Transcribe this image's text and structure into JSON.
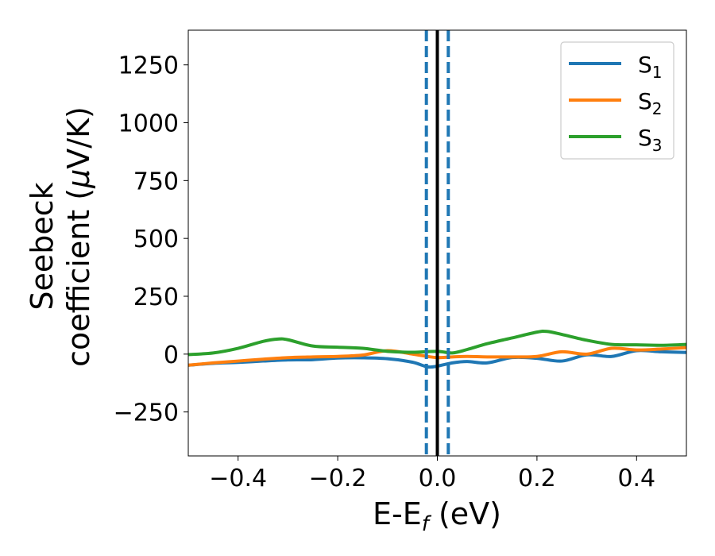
{
  "chart_data": {
    "type": "line",
    "xlabel": "E-E",
    "xlabel_sub": "f",
    "xlabel_unit": " (eV)",
    "ylabel_line1": "Seebeck",
    "ylabel_line2": "coefficient  (",
    "ylabel_mu": "μ",
    "ylabel_unit": "V/K)",
    "xlim": [
      -0.5,
      0.5
    ],
    "ylim": [
      -440,
      1400
    ],
    "xticks": [
      -0.4,
      -0.2,
      0.0,
      0.2,
      0.4
    ],
    "xtick_labels": [
      "−0.4",
      "−0.2",
      "0.0",
      "0.2",
      "0.4"
    ],
    "yticks": [
      -250,
      0,
      250,
      500,
      750,
      1000,
      1250
    ],
    "ytick_labels": [
      "−250",
      "0",
      "250",
      "500",
      "750",
      "1000",
      "1250"
    ],
    "grid": false,
    "legend_position": "top-right",
    "vlines": [
      {
        "x": 0.0,
        "color": "#000000",
        "style": "solid"
      },
      {
        "x": -0.022,
        "color": "#1f77b4",
        "style": "dashed"
      },
      {
        "x": 0.022,
        "color": "#1f77b4",
        "style": "dashed"
      }
    ],
    "series": [
      {
        "name": "S",
        "sub": "1",
        "color": "#1f77b4",
        "x": [
          -0.5,
          -0.45,
          -0.4,
          -0.35,
          -0.3,
          -0.25,
          -0.2,
          -0.15,
          -0.1,
          -0.05,
          -0.02,
          0.0,
          0.03,
          0.06,
          0.1,
          0.15,
          0.2,
          0.25,
          0.3,
          0.35,
          0.4,
          0.45,
          0.5
        ],
        "values": [
          -48,
          -40,
          -36,
          -30,
          -25,
          -24,
          -17,
          -16,
          -20,
          -35,
          -55,
          -52,
          -38,
          -32,
          -38,
          -15,
          -18,
          -30,
          -3,
          -10,
          15,
          10,
          7
        ]
      },
      {
        "name": "S",
        "sub": "2",
        "color": "#ff7f0e",
        "x": [
          -0.5,
          -0.45,
          -0.4,
          -0.35,
          -0.3,
          -0.25,
          -0.2,
          -0.15,
          -0.1,
          -0.05,
          -0.02,
          0.0,
          0.03,
          0.06,
          0.1,
          0.15,
          0.2,
          0.25,
          0.3,
          0.35,
          0.4,
          0.45,
          0.5
        ],
        "values": [
          -48,
          -38,
          -30,
          -22,
          -15,
          -12,
          -10,
          -4,
          15,
          0,
          -10,
          -15,
          -12,
          -10,
          -12,
          -12,
          -10,
          10,
          0,
          25,
          18,
          22,
          28
        ]
      },
      {
        "name": "S",
        "sub": "3",
        "color": "#2ca02c",
        "x": [
          -0.5,
          -0.45,
          -0.4,
          -0.35,
          -0.32,
          -0.3,
          -0.25,
          -0.2,
          -0.15,
          -0.1,
          -0.05,
          0.0,
          0.03,
          0.06,
          0.1,
          0.15,
          0.2,
          0.22,
          0.25,
          0.3,
          0.35,
          0.4,
          0.45,
          0.5
        ],
        "values": [
          -2,
          5,
          25,
          55,
          65,
          62,
          35,
          30,
          25,
          12,
          8,
          12,
          5,
          20,
          45,
          70,
          95,
          98,
          85,
          60,
          42,
          40,
          38,
          42
        ]
      }
    ]
  }
}
